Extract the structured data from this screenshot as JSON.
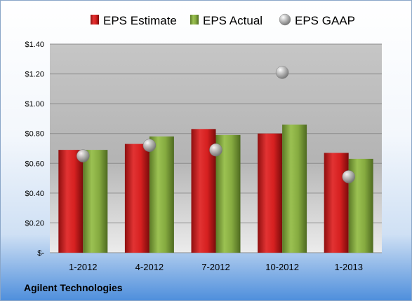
{
  "company": "Agilent Technologies",
  "colors": {
    "estimate": "#cc1f1f",
    "actual": "#7fa43d",
    "gaap": "#b8b8b8"
  },
  "chart_data": {
    "type": "bar",
    "categories": [
      "1-2012",
      "4-2012",
      "7-2012",
      "10-2012",
      "1-2013"
    ],
    "series": [
      {
        "name": "EPS Estimate",
        "kind": "bar",
        "values": [
          0.69,
          0.73,
          0.83,
          0.8,
          0.67
        ]
      },
      {
        "name": "EPS Actual",
        "kind": "bar",
        "values": [
          0.69,
          0.78,
          0.79,
          0.86,
          0.63
        ]
      },
      {
        "name": "EPS GAAP",
        "kind": "scatter",
        "values": [
          0.65,
          0.72,
          0.69,
          1.21,
          0.51
        ]
      }
    ],
    "ylim": [
      0,
      1.4
    ],
    "yticks": [
      0,
      0.2,
      0.4,
      0.6,
      0.8,
      1.0,
      1.2,
      1.4
    ],
    "ytick_labels": [
      "$-",
      "$0.20",
      "$0.40",
      "$0.60",
      "$0.80",
      "$1.00",
      "$1.20",
      "$1.40"
    ],
    "legend_position": "top",
    "grid": true
  }
}
